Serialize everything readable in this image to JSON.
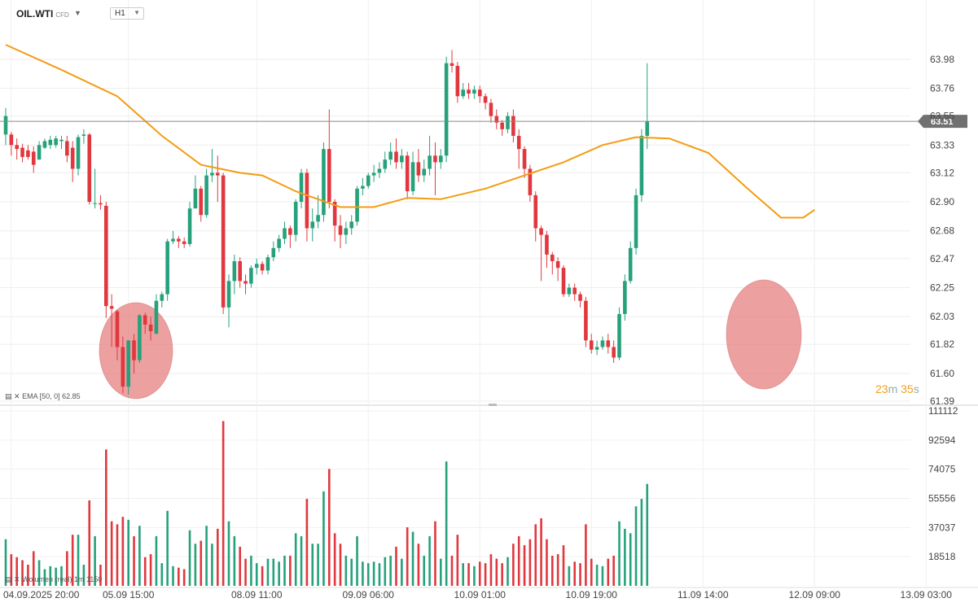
{
  "header": {
    "symbol": "OIL.WTI",
    "symbol_tag": "CFD",
    "timeframe": "H1"
  },
  "indicators": {
    "ema_label": "EMA [50, 0] 62.85",
    "volume_label": "Wolumen (real) 1m 1150"
  },
  "timer": {
    "minutes": "23",
    "m_unit": "m",
    "seconds": "35",
    "s_unit": "s"
  },
  "current_price": "63.51",
  "colors": {
    "up": "#26a17b",
    "down": "#e0383e",
    "ema": "#f39c12",
    "price_tag": "#707070",
    "highlight": "#e26d6d"
  },
  "chart_data": [
    {
      "type": "candlestick",
      "ylim": [
        61.39,
        64.09
      ],
      "y_ticks": [
        "63.98",
        "63.76",
        "63.55",
        "63.33",
        "63.12",
        "62.90",
        "62.68",
        "62.47",
        "62.25",
        "62.03",
        "61.82",
        "61.60",
        "61.39"
      ],
      "x_ticks": [
        {
          "label": "04.09.2025 20:00",
          "index": 1
        },
        {
          "label": "05.09 15:00",
          "index": 22
        },
        {
          "label": "08.09 11:00",
          "index": 45
        },
        {
          "label": "09.09 06:00",
          "index": 65
        },
        {
          "label": "10.09 01:00",
          "index": 85
        },
        {
          "label": "10.09 19:00",
          "index": 105
        },
        {
          "label": "11.09 14:00",
          "index": 125
        },
        {
          "label": "12.09 09:00",
          "index": 145
        },
        {
          "label": "13.09 03:00",
          "index": 165
        }
      ],
      "current_price": 63.51,
      "ema_period": 50,
      "ema_value": 62.85,
      "ema_series": [
        [
          0,
          64.09
        ],
        [
          10,
          63.9
        ],
        [
          20,
          63.7
        ],
        [
          28,
          63.4
        ],
        [
          35,
          63.18
        ],
        [
          42,
          63.12
        ],
        [
          46,
          63.1
        ],
        [
          52,
          62.98
        ],
        [
          60,
          62.86
        ],
        [
          66,
          62.86
        ],
        [
          72,
          62.93
        ],
        [
          78,
          62.92
        ],
        [
          86,
          63.0
        ],
        [
          93,
          63.1
        ],
        [
          100,
          63.2
        ],
        [
          107,
          63.33
        ],
        [
          113,
          63.39
        ],
        [
          119,
          63.38
        ],
        [
          126,
          63.27
        ],
        [
          133,
          63.0
        ],
        [
          139,
          62.78
        ],
        [
          143,
          62.78
        ],
        [
          145,
          62.84
        ]
      ],
      "candles": [
        [
          63.41,
          63.55,
          63.61,
          63.33
        ],
        [
          63.41,
          63.33,
          63.43,
          63.25
        ],
        [
          63.33,
          63.3,
          63.38,
          63.22
        ],
        [
          63.31,
          63.24,
          63.34,
          63.2
        ],
        [
          63.29,
          63.24,
          63.33,
          63.22
        ],
        [
          63.28,
          63.18,
          63.32,
          63.12
        ],
        [
          63.22,
          63.33,
          63.36,
          63.22
        ],
        [
          63.31,
          63.36,
          63.38,
          63.3
        ],
        [
          63.33,
          63.37,
          63.4,
          63.3
        ],
        [
          63.33,
          63.38,
          63.4,
          63.31
        ],
        [
          63.36,
          63.37,
          63.4,
          63.3
        ],
        [
          63.36,
          63.25,
          63.4,
          63.2
        ],
        [
          63.31,
          63.15,
          63.36,
          63.05
        ],
        [
          63.15,
          63.39,
          63.41,
          63.1
        ],
        [
          63.4,
          63.41,
          63.45,
          63.34
        ],
        [
          63.41,
          62.9,
          63.42,
          62.88
        ],
        [
          62.89,
          62.89,
          63.15,
          62.85
        ],
        [
          62.89,
          62.88,
          62.95,
          62.84
        ],
        [
          62.87,
          62.11,
          62.9,
          62.02
        ],
        [
          62.11,
          62.09,
          62.2,
          61.8
        ],
        [
          62.07,
          61.8,
          62.08,
          61.7
        ],
        [
          61.8,
          61.5,
          61.88,
          61.45
        ],
        [
          61.5,
          61.85,
          61.85,
          61.44
        ],
        [
          61.85,
          61.7,
          61.9,
          61.6
        ],
        [
          61.7,
          62.04,
          62.05,
          61.68
        ],
        [
          62.04,
          61.97,
          62.06,
          61.9
        ],
        [
          61.97,
          61.92,
          62.03,
          61.85
        ],
        [
          61.9,
          62.15,
          62.2,
          61.9
        ],
        [
          62.15,
          62.2,
          62.22,
          62.1
        ],
        [
          62.2,
          62.6,
          62.62,
          62.15
        ],
        [
          62.6,
          62.62,
          62.68,
          62.58
        ],
        [
          62.62,
          62.6,
          62.64,
          62.55
        ],
        [
          62.6,
          62.58,
          62.63,
          62.55
        ],
        [
          62.58,
          62.85,
          62.9,
          62.56
        ],
        [
          62.85,
          63.0,
          63.1,
          62.85
        ],
        [
          63.0,
          62.8,
          63.02,
          62.75
        ],
        [
          62.8,
          63.1,
          63.15,
          62.78
        ],
        [
          63.1,
          63.12,
          63.3,
          63.05
        ],
        [
          63.12,
          63.1,
          63.25,
          62.9
        ],
        [
          63.1,
          62.1,
          63.12,
          62.05
        ],
        [
          62.1,
          62.3,
          62.35,
          61.95
        ],
        [
          62.3,
          62.45,
          62.5,
          62.2
        ],
        [
          62.45,
          62.3,
          62.48,
          62.25
        ],
        [
          62.3,
          62.28,
          62.35,
          62.2
        ],
        [
          62.28,
          62.4,
          62.42,
          62.25
        ],
        [
          62.4,
          62.43,
          62.47,
          62.35
        ],
        [
          62.43,
          62.38,
          62.45,
          62.35
        ],
        [
          62.38,
          62.48,
          62.5,
          62.35
        ],
        [
          62.48,
          62.55,
          62.6,
          62.45
        ],
        [
          62.55,
          62.62,
          62.65,
          62.52
        ],
        [
          62.62,
          62.7,
          62.75,
          62.58
        ],
        [
          62.7,
          62.65,
          62.72,
          62.55
        ],
        [
          62.65,
          62.9,
          62.92,
          62.6
        ],
        [
          62.9,
          63.12,
          63.15,
          62.85
        ],
        [
          63.12,
          62.7,
          63.15,
          62.6
        ],
        [
          62.7,
          62.75,
          62.85,
          62.6
        ],
        [
          62.75,
          62.8,
          62.95,
          62.7
        ],
        [
          62.8,
          63.3,
          63.35,
          62.75
        ],
        [
          63.3,
          62.9,
          63.6,
          62.85
        ],
        [
          62.9,
          62.72,
          62.92,
          62.6
        ],
        [
          62.72,
          62.65,
          62.8,
          62.55
        ],
        [
          62.65,
          62.7,
          62.75,
          62.58
        ],
        [
          62.7,
          62.75,
          62.8,
          62.65
        ],
        [
          62.75,
          63.0,
          63.02,
          62.72
        ],
        [
          63.0,
          63.02,
          63.08,
          62.95
        ],
        [
          63.02,
          63.1,
          63.12,
          63.0
        ],
        [
          63.1,
          63.12,
          63.18,
          63.05
        ],
        [
          63.12,
          63.15,
          63.2,
          63.08
        ],
        [
          63.15,
          63.22,
          63.28,
          63.12
        ],
        [
          63.22,
          63.28,
          63.35,
          63.18
        ],
        [
          63.28,
          63.2,
          63.38,
          63.15
        ],
        [
          63.2,
          63.25,
          63.3,
          63.15
        ],
        [
          63.25,
          62.98,
          63.28,
          62.92
        ],
        [
          62.98,
          63.2,
          63.28,
          62.95
        ],
        [
          63.2,
          63.1,
          63.3,
          63.05
        ],
        [
          63.1,
          63.15,
          63.22,
          63.05
        ],
        [
          63.15,
          63.25,
          63.4,
          63.1
        ],
        [
          63.25,
          63.2,
          63.35,
          62.95
        ],
        [
          63.2,
          63.25,
          63.3,
          63.15
        ],
        [
          63.25,
          63.95,
          64.0,
          63.2
        ],
        [
          63.95,
          63.93,
          64.05,
          63.88
        ],
        [
          63.93,
          63.7,
          63.96,
          63.65
        ],
        [
          63.7,
          63.75,
          63.8,
          63.68
        ],
        [
          63.75,
          63.72,
          63.8,
          63.68
        ],
        [
          63.72,
          63.75,
          63.78,
          63.68
        ],
        [
          63.75,
          63.7,
          63.78,
          63.65
        ],
        [
          63.7,
          63.65,
          63.72,
          63.6
        ],
        [
          63.65,
          63.55,
          63.68,
          63.5
        ],
        [
          63.55,
          63.5,
          63.6,
          63.45
        ],
        [
          63.5,
          63.45,
          63.52,
          63.4
        ],
        [
          63.45,
          63.55,
          63.58,
          63.42
        ],
        [
          63.55,
          63.4,
          63.6,
          63.35
        ],
        [
          63.4,
          63.3,
          63.45,
          63.15
        ],
        [
          63.3,
          63.15,
          63.32,
          63.08
        ],
        [
          63.15,
          62.95,
          63.18,
          62.9
        ],
        [
          62.95,
          62.7,
          62.98,
          62.6
        ],
        [
          62.7,
          62.65,
          62.72,
          62.3
        ],
        [
          62.65,
          62.5,
          62.68,
          62.4
        ],
        [
          62.5,
          62.45,
          62.52,
          62.35
        ],
        [
          62.45,
          62.4,
          62.48,
          62.3
        ],
        [
          62.4,
          62.2,
          62.42,
          62.18
        ],
        [
          62.2,
          62.25,
          62.28,
          62.18
        ],
        [
          62.25,
          62.2,
          62.28,
          62.15
        ],
        [
          62.2,
          62.15,
          62.22,
          62.1
        ],
        [
          62.15,
          61.85,
          62.18,
          61.8
        ],
        [
          61.85,
          61.78,
          61.9,
          61.75
        ],
        [
          61.78,
          61.8,
          61.85,
          61.74
        ],
        [
          61.8,
          61.85,
          61.88,
          61.78
        ],
        [
          61.85,
          61.8,
          61.9,
          61.75
        ],
        [
          61.8,
          61.72,
          61.85,
          61.68
        ],
        [
          61.72,
          62.05,
          62.1,
          61.7
        ],
        [
          62.05,
          62.3,
          62.35,
          62.0
        ],
        [
          62.3,
          62.55,
          62.6,
          62.28
        ],
        [
          62.55,
          62.95,
          63.0,
          62.5
        ],
        [
          62.95,
          63.4,
          63.45,
          62.9
        ],
        [
          63.4,
          63.51,
          63.95,
          63.3
        ]
      ],
      "volume": {
        "ylim": [
          0,
          111112
        ],
        "y_ticks": [
          "111112",
          "92594",
          "74075",
          "55556",
          "37037",
          "18518"
        ]
      }
    }
  ]
}
